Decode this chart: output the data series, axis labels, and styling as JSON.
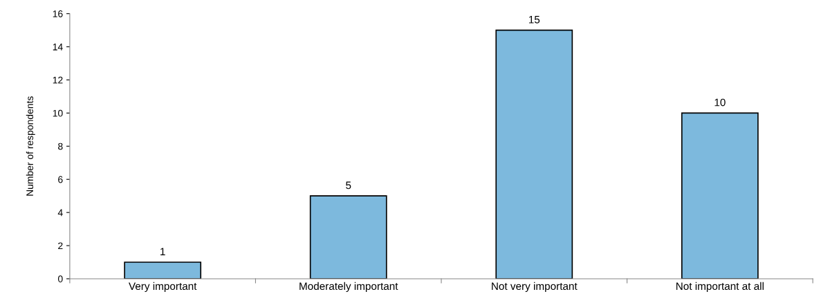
{
  "chart_data": {
    "type": "bar",
    "ylabel": "Number of respondents",
    "categories": [
      "Very important",
      "Moderately important",
      "Not very important",
      "Not important at all"
    ],
    "values": [
      1,
      5,
      15,
      10
    ],
    "color": "#7db9dd",
    "ylim": [
      0,
      16
    ],
    "yticks": [
      0,
      2,
      4,
      6,
      8,
      10,
      12,
      14,
      16
    ],
    "grid": false,
    "data_labels": true
  }
}
